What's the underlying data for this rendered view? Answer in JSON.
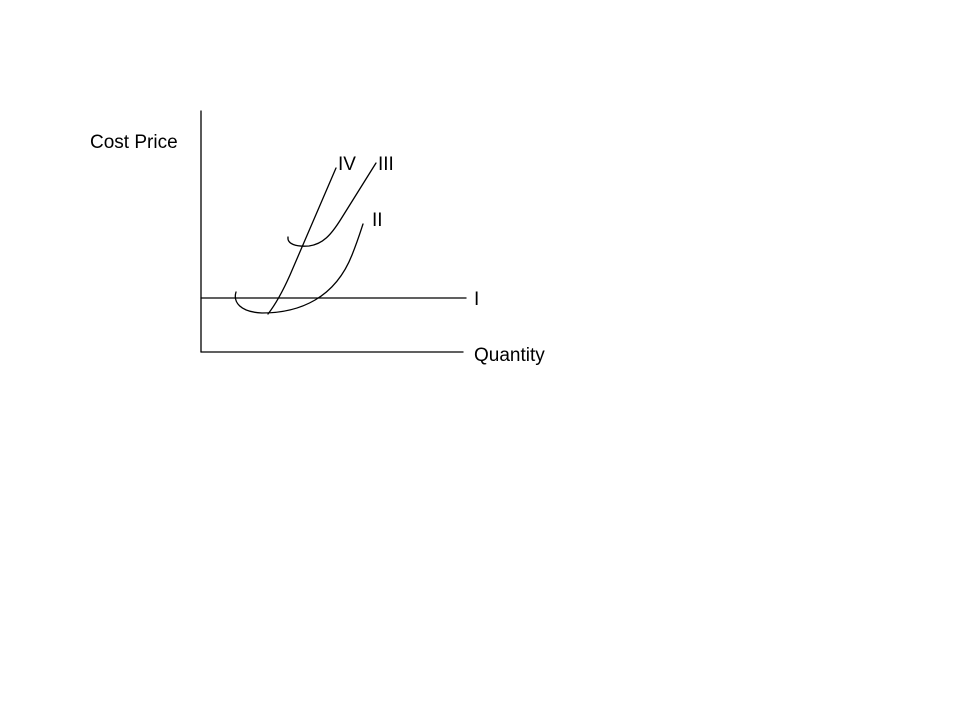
{
  "diagram": {
    "y_axis_label": "Cost Price",
    "x_axis_label": "Quantity",
    "curves": [
      {
        "id": "I",
        "label": "I"
      },
      {
        "id": "II",
        "label": "II"
      },
      {
        "id": "III",
        "label": "III"
      },
      {
        "id": "IV",
        "label": "IV"
      }
    ],
    "stroke_color": "#000000",
    "background_color": "#ffffff"
  }
}
